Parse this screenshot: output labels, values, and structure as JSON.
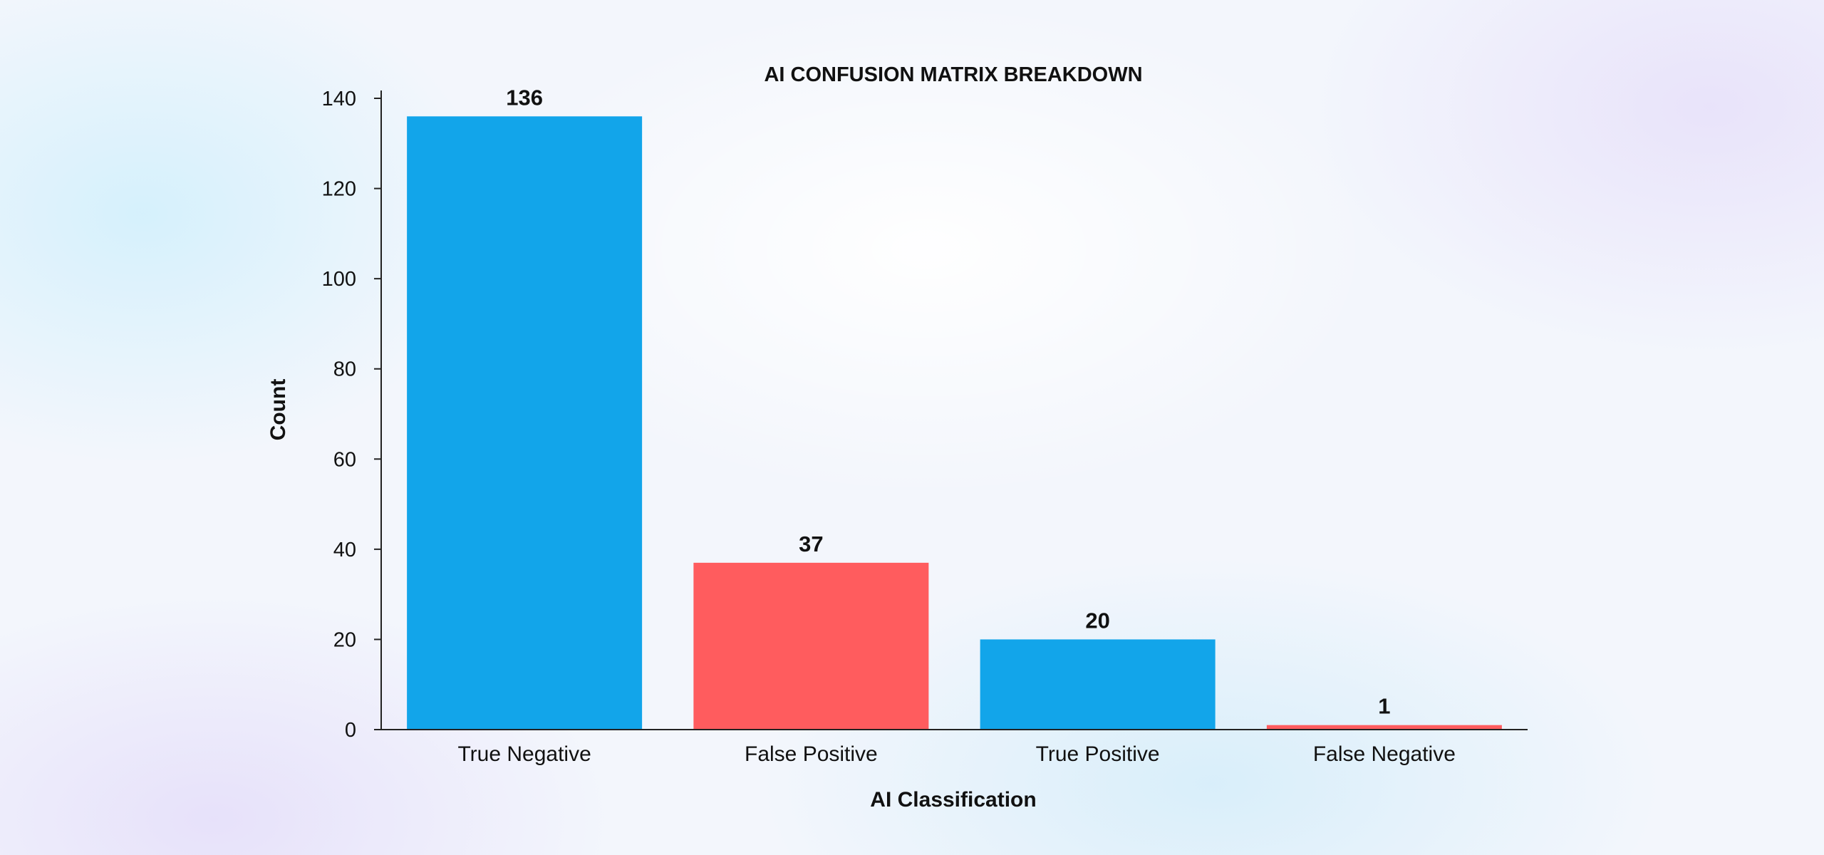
{
  "chart_data": {
    "type": "bar",
    "title": "AI CONFUSION MATRIX BREAKDOWN",
    "xlabel": "AI Classification",
    "ylabel": "Count",
    "categories": [
      "True Negative",
      "False Positive",
      "True Positive",
      "False Negative"
    ],
    "values": [
      136,
      37,
      20,
      1
    ],
    "value_labels": [
      "136",
      "37",
      "20",
      "1"
    ],
    "colors": [
      "#12a5ea",
      "#ff5c5e",
      "#12a5ea",
      "#ff5c5e"
    ],
    "ylim": [
      0,
      140
    ],
    "yticks": [
      0,
      20,
      40,
      60,
      80,
      100,
      120,
      140
    ],
    "ytick_labels": [
      "0",
      "20",
      "40",
      "60",
      "80",
      "100",
      "120",
      "140"
    ],
    "grid": false,
    "legend": "none"
  }
}
